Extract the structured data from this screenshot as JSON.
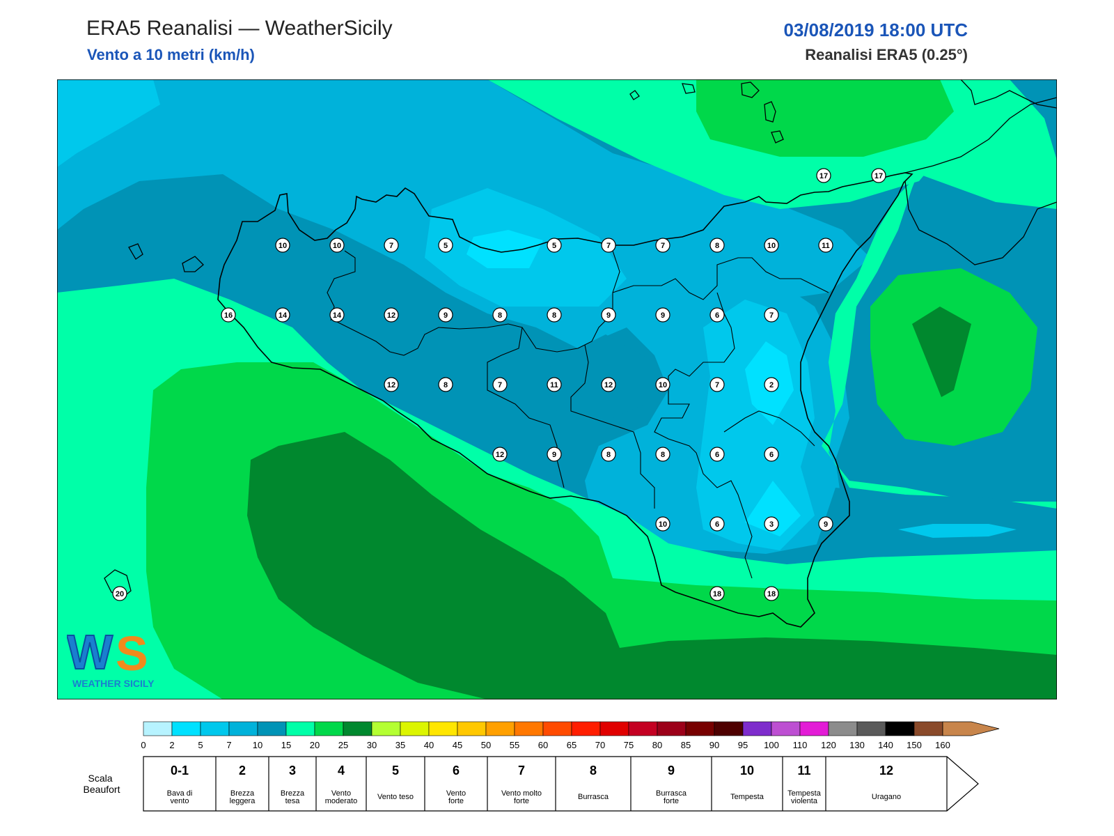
{
  "header": {
    "title": "ERA5 Reanalisi — WeatherSicily",
    "subtitle": "Vento a 10 metri (km/h)",
    "datetime": "03/08/2019 18:00 UTC",
    "source": "Reanalisi ERA5 (0.25°)"
  },
  "logo": {
    "letters": "WS",
    "text": "WEATHER SICILY"
  },
  "map": {
    "station_values": [
      {
        "v": "17",
        "c": [
          1183,
          252
        ]
      },
      {
        "v": "17",
        "c": [
          1262,
          252
        ]
      },
      {
        "v": "10",
        "c": [
          406,
          352
        ]
      },
      {
        "v": "10",
        "c": [
          484,
          352
        ]
      },
      {
        "v": "7",
        "c": [
          562,
          352
        ]
      },
      {
        "v": "5",
        "c": [
          640,
          352
        ]
      },
      {
        "v": "5",
        "c": [
          796,
          352
        ]
      },
      {
        "v": "7",
        "c": [
          874,
          352
        ]
      },
      {
        "v": "7",
        "c": [
          952,
          352
        ]
      },
      {
        "v": "8",
        "c": [
          1030,
          352
        ]
      },
      {
        "v": "10",
        "c": [
          1108,
          352
        ]
      },
      {
        "v": "11",
        "c": [
          1186,
          352
        ]
      },
      {
        "v": "16",
        "c": [
          328,
          452
        ]
      },
      {
        "v": "14",
        "c": [
          406,
          452
        ]
      },
      {
        "v": "14",
        "c": [
          484,
          452
        ]
      },
      {
        "v": "12",
        "c": [
          562,
          452
        ]
      },
      {
        "v": "9",
        "c": [
          640,
          452
        ]
      },
      {
        "v": "8",
        "c": [
          718,
          452
        ]
      },
      {
        "v": "8",
        "c": [
          796,
          452
        ]
      },
      {
        "v": "9",
        "c": [
          874,
          452
        ]
      },
      {
        "v": "9",
        "c": [
          952,
          452
        ]
      },
      {
        "v": "6",
        "c": [
          1030,
          452
        ]
      },
      {
        "v": "7",
        "c": [
          1108,
          452
        ]
      },
      {
        "v": "12",
        "c": [
          562,
          552
        ]
      },
      {
        "v": "8",
        "c": [
          640,
          552
        ]
      },
      {
        "v": "7",
        "c": [
          718,
          552
        ]
      },
      {
        "v": "11",
        "c": [
          796,
          552
        ]
      },
      {
        "v": "12",
        "c": [
          874,
          552
        ]
      },
      {
        "v": "10",
        "c": [
          952,
          552
        ]
      },
      {
        "v": "7",
        "c": [
          1030,
          552
        ]
      },
      {
        "v": "2",
        "c": [
          1108,
          552
        ]
      },
      {
        "v": "12",
        "c": [
          718,
          652
        ]
      },
      {
        "v": "9",
        "c": [
          796,
          652
        ]
      },
      {
        "v": "8",
        "c": [
          874,
          652
        ]
      },
      {
        "v": "8",
        "c": [
          952,
          652
        ]
      },
      {
        "v": "6",
        "c": [
          1030,
          652
        ]
      },
      {
        "v": "6",
        "c": [
          1108,
          652
        ]
      },
      {
        "v": "10",
        "c": [
          952,
          752
        ]
      },
      {
        "v": "6",
        "c": [
          1030,
          752
        ]
      },
      {
        "v": "3",
        "c": [
          1108,
          752
        ]
      },
      {
        "v": "9",
        "c": [
          1186,
          752
        ]
      },
      {
        "v": "20",
        "c": [
          172,
          852
        ]
      },
      {
        "v": "18",
        "c": [
          1030,
          852
        ]
      },
      {
        "v": "18",
        "c": [
          1108,
          852
        ]
      }
    ]
  },
  "legend": {
    "ticks": [
      "0",
      "2",
      "5",
      "7",
      "10",
      "15",
      "20",
      "25",
      "30",
      "35",
      "40",
      "45",
      "50",
      "55",
      "60",
      "65",
      "70",
      "75",
      "80",
      "85",
      "90",
      "95",
      "100",
      "110",
      "120",
      "130",
      "140",
      "150",
      "160"
    ],
    "colors": [
      "#b7f3ff",
      "#00e1ff",
      "#00c8ec",
      "#00b2da",
      "#0093b6",
      "#00ffa8",
      "#00d84a",
      "#00882e",
      "#b4ff32",
      "#dcf500",
      "#ffe600",
      "#ffc800",
      "#ffa000",
      "#ff7800",
      "#ff4b00",
      "#ff1e00",
      "#e00000",
      "#c40022",
      "#9c0019",
      "#770000",
      "#4e0000",
      "#7e2ccc",
      "#bd4fd2",
      "#e31cd6",
      "#8c8c8c",
      "#5a5a5a",
      "#000000",
      "#8a4a2a",
      "#c8854b"
    ],
    "beaufort_label": "Scala\nBeaufort",
    "beaufort": [
      {
        "n": "0-1",
        "d": "Bava di\nvento"
      },
      {
        "n": "2",
        "d": "Brezza\nleggera"
      },
      {
        "n": "3",
        "d": "Brezza\ntesa"
      },
      {
        "n": "4",
        "d": "Vento\nmoderato"
      },
      {
        "n": "5",
        "d": "Vento teso"
      },
      {
        "n": "6",
        "d": "Vento\nforte"
      },
      {
        "n": "7",
        "d": "Vento molto\nforte"
      },
      {
        "n": "8",
        "d": "Burrasca"
      },
      {
        "n": "9",
        "d": "Burrasca\nforte"
      },
      {
        "n": "10",
        "d": "Tempesta"
      },
      {
        "n": "11",
        "d": "Tempesta\nviolenta"
      },
      {
        "n": "12",
        "d": "Uragano"
      }
    ]
  }
}
